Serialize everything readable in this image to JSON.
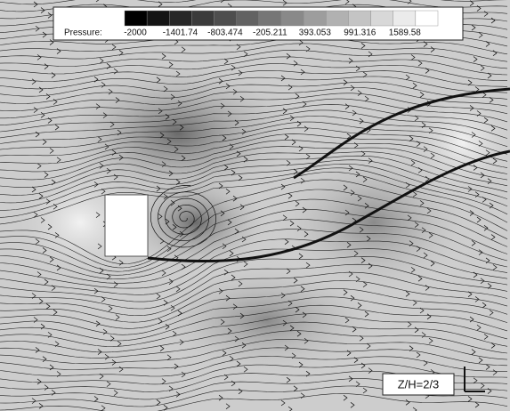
{
  "legend": {
    "title": "Pressure:",
    "ticks": [
      -2000,
      -1401.74,
      -803.474,
      -205.211,
      393.053,
      991.316,
      1589.58
    ]
  },
  "annotation": "Z/H=2/3"
}
